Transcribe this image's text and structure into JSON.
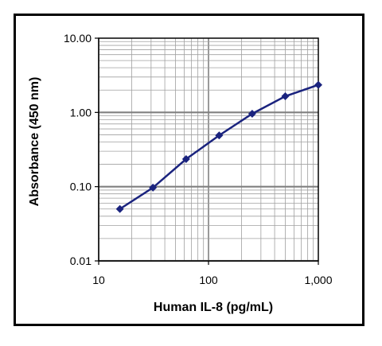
{
  "chart_data": {
    "type": "line",
    "xlabel": "Human IL-8 (pg/mL)",
    "ylabel": "Absorbance (450 nm)",
    "x_scale": "log",
    "y_scale": "log",
    "xlim": [
      10,
      1000
    ],
    "ylim": [
      0.01,
      10
    ],
    "x_ticks": [
      "10",
      "100",
      "1,000"
    ],
    "y_ticks": [
      "10.00",
      "1.00",
      "0.10",
      "0.01"
    ],
    "grid": true,
    "series": [
      {
        "x": [
          15.6,
          31.2,
          62.5,
          125,
          250,
          500,
          1000
        ],
        "y": [
          0.05,
          0.097,
          0.235,
          0.49,
          0.96,
          1.65,
          2.35
        ],
        "marker": "diamond"
      }
    ],
    "colors": {
      "line": "#1a237e",
      "marker": "#1a237e",
      "grid": "#a0a0a0",
      "major_grid": "#808080"
    }
  }
}
